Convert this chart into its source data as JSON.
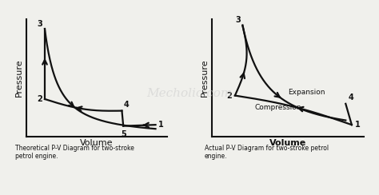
{
  "bg_color": "#f0f0ec",
  "watermark": "Mecholic.com",
  "left_title": "Theoretical P-V Diagram for two-stroke\npetrol engine.",
  "right_title": "Actual P-V Diagram for two-stroke petrol\nengine.",
  "left_ylabel": "Pressure",
  "right_ylabel": "Pressure",
  "xlabel": "Volume",
  "line_color": "#111111",
  "text_color": "#111111",
  "watermark_color": "#cccccc",
  "figsize": [
    4.74,
    2.44
  ],
  "dpi": 100
}
